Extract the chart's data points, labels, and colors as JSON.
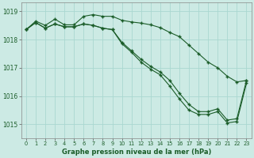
{
  "title": "Graphe pression niveau de la mer (hPa)",
  "bg_color": "#cceae4",
  "grid_color": "#aad8d0",
  "line_color": "#1a5c28",
  "xlim": [
    -0.5,
    23.5
  ],
  "ylim": [
    1014.5,
    1019.3
  ],
  "yticks": [
    1015,
    1016,
    1017,
    1018,
    1019
  ],
  "xticks": [
    0,
    1,
    2,
    3,
    4,
    5,
    6,
    7,
    8,
    9,
    10,
    11,
    12,
    13,
    14,
    15,
    16,
    17,
    18,
    19,
    20,
    21,
    22,
    23
  ],
  "series1": [
    1018.35,
    1018.65,
    1018.5,
    1018.72,
    1018.52,
    1018.52,
    1018.82,
    1018.88,
    1018.82,
    1018.82,
    1018.68,
    1018.62,
    1018.58,
    1018.52,
    1018.42,
    1018.25,
    1018.1,
    1017.8,
    1017.5,
    1017.2,
    1017.0,
    1016.7,
    1016.5,
    1016.55
  ],
  "series2": [
    1018.35,
    1018.6,
    1018.4,
    1018.55,
    1018.45,
    1018.45,
    1018.55,
    1018.5,
    1018.4,
    1018.35,
    1017.9,
    1017.6,
    1017.3,
    1017.05,
    1016.85,
    1016.55,
    1016.1,
    1015.7,
    1015.45,
    1015.45,
    1015.55,
    1015.15,
    1015.2,
    1016.55
  ],
  "series3": [
    1018.35,
    1018.6,
    1018.4,
    1018.55,
    1018.45,
    1018.45,
    1018.55,
    1018.5,
    1018.4,
    1018.35,
    1017.85,
    1017.55,
    1017.2,
    1016.95,
    1016.75,
    1016.35,
    1015.9,
    1015.5,
    1015.35,
    1015.35,
    1015.45,
    1015.05,
    1015.1,
    1016.45
  ]
}
